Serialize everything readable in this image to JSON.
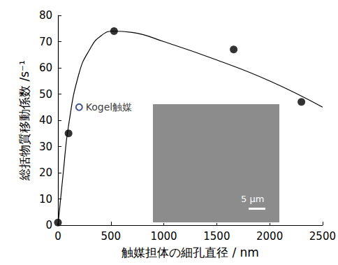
{
  "chart_data": {
    "type": "scatter",
    "xlabel": "触媒担体の細孔直径 / nm",
    "ylabel": "総括物質移動係数 /s⁻¹",
    "xlim": [
      0,
      2500
    ],
    "xticks": [
      0,
      500,
      1000,
      1500,
      2000,
      2500
    ],
    "ylim": [
      0,
      80
    ],
    "yticks": [
      0,
      10,
      20,
      30,
      40,
      50,
      60,
      70,
      80
    ],
    "grid": false,
    "series": [
      {
        "type": "line",
        "color": "#000000",
        "line_style": "smooth",
        "x": [
          0,
          50,
          100,
          200,
          300,
          400,
          530,
          700,
          1000,
          1500,
          2000,
          2500
        ],
        "values": [
          0,
          20,
          38,
          58,
          67,
          72,
          74,
          73.5,
          70,
          63,
          55,
          45
        ]
      },
      {
        "type": "scatter",
        "color": "#000000",
        "marker": "circle",
        "x": [
          0,
          100,
          530,
          1660,
          2300
        ],
        "values": [
          1,
          35,
          74,
          67,
          47
        ]
      },
      {
        "type": "scatter",
        "name": "Kogel触媒",
        "color": "#1a2a6c",
        "marker": "open_circle",
        "data_labels": true,
        "x": [
          200
        ],
        "values": [
          45
        ]
      }
    ],
    "annotations": [
      {
        "text": "5 μm"
      }
    ]
  }
}
